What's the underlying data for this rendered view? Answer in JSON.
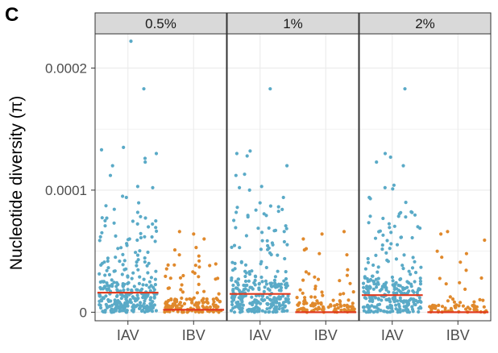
{
  "panel_label": "C",
  "colors": {
    "iav": "#5aaac7",
    "ibv": "#e0892c",
    "median": "#e03a1e",
    "strip_fill": "#d9d9d9",
    "grid": "#ebebeb"
  },
  "chart_data": {
    "type": "scatter",
    "subtype": "faceted jitter strip plot with median lines",
    "ylabel": "Nucleotide diversity (π)",
    "ylim": [
      -7e-06,
      0.000228
    ],
    "y_ticks": [
      0,
      0.0001,
      0.0002
    ],
    "y_tick_labels": [
      "0",
      "0.0001",
      "0.0002"
    ],
    "categories": [
      "IAV",
      "IBV"
    ],
    "grid": true,
    "legend": "none",
    "facets": [
      {
        "label": "0.5%",
        "groups": [
          {
            "name": "IAV",
            "color": "iav",
            "median": 1.6e-05,
            "outliers": [
              0.000222,
              0.000183,
              0.000135,
              0.000133,
              0.00013,
              0.000126,
              0.000123,
              0.00012,
              0.000112,
              0.000103,
              0.000102,
              9.5e-05,
              9.4e-05
            ],
            "n": 300,
            "mid_range": [
              2.5e-05,
              9e-05
            ],
            "n_mid": 80,
            "low_range": [
              0,
              2.5e-05
            ]
          },
          {
            "name": "IBV",
            "color": "ibv",
            "median": 2e-06,
            "outliers": [
              6.6e-05,
              6.4e-05,
              6e-05,
              5.3e-05,
              5.1e-05,
              4.7e-05,
              4.6e-05,
              4.2e-05
            ],
            "n": 140,
            "mid_range": [
              1.5e-05,
              4e-05
            ],
            "n_mid": 25,
            "low_range": [
              0,
              1.2e-05
            ]
          }
        ]
      },
      {
        "label": "1%",
        "groups": [
          {
            "name": "IAV",
            "color": "iav",
            "median": 1.5e-05,
            "outliers": [
              0.000183,
              0.000132,
              0.00013,
              0.000128,
              0.00012,
              0.000113,
              0.000112,
              0.000103,
              0.000102,
              0.0001,
              9.4e-05
            ],
            "n": 280,
            "mid_range": [
              2.5e-05,
              9e-05
            ],
            "n_mid": 75,
            "low_range": [
              0,
              2.5e-05
            ]
          },
          {
            "name": "IBV",
            "color": "ibv",
            "median": 0.0,
            "outliers": [
              6.6e-05,
              6.4e-05,
              6e-05,
              5.2e-05,
              5.1e-05,
              4.8e-05,
              4.7e-05
            ],
            "n": 110,
            "mid_range": [
              1.2e-05,
              3.5e-05
            ],
            "n_mid": 22,
            "low_range": [
              0,
              1e-05
            ]
          }
        ]
      },
      {
        "label": "2%",
        "groups": [
          {
            "name": "IAV",
            "color": "iav",
            "median": 1.4e-05,
            "outliers": [
              0.000183,
              0.00013,
              0.000127,
              0.000123,
              0.00012,
              0.000104,
              0.000102,
              0.000101,
              9.4e-05,
              9.3e-05,
              9e-05
            ],
            "n": 270,
            "mid_range": [
              2.5e-05,
              8.5e-05
            ],
            "n_mid": 70,
            "low_range": [
              0,
              2.5e-05
            ]
          },
          {
            "name": "IBV",
            "color": "ibv",
            "median": 0.0,
            "outliers": [
              6.6e-05,
              6.4e-05,
              5.9e-05,
              5e-05,
              4.8e-05,
              4.5e-05,
              4.1e-05
            ],
            "n": 70,
            "mid_range": [
              8e-06,
              3.5e-05
            ],
            "n_mid": 14,
            "low_range": [
              0,
              6e-06
            ]
          }
        ]
      }
    ]
  }
}
